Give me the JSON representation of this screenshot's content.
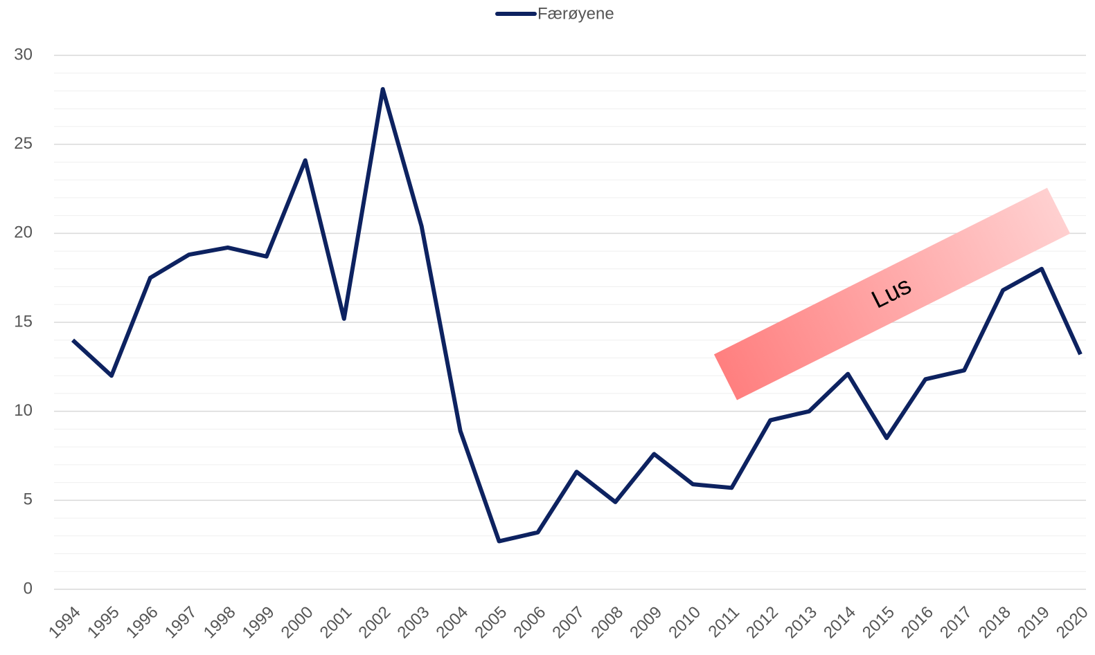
{
  "chart_data": {
    "type": "line",
    "categories": [
      "1994",
      "1995",
      "1996",
      "1997",
      "1998",
      "1999",
      "2000",
      "2001",
      "2002",
      "2003",
      "2004",
      "2005",
      "2006",
      "2007",
      "2008",
      "2009",
      "2010",
      "2011",
      "2012",
      "2013",
      "2014",
      "2015",
      "2016",
      "2017",
      "2018",
      "2019",
      "2020"
    ],
    "series": [
      {
        "name": "Færøyene",
        "color": "#0d2260",
        "values": [
          14.0,
          12.0,
          17.5,
          18.8,
          19.2,
          18.7,
          24.1,
          15.2,
          28.1,
          20.4,
          8.9,
          2.7,
          3.2,
          6.6,
          4.9,
          7.6,
          5.9,
          5.7,
          9.5,
          10.0,
          12.1,
          8.5,
          11.8,
          12.3,
          16.8,
          18.0,
          13.2
        ]
      }
    ],
    "ylim": [
      0,
      30
    ],
    "yticks": [
      0,
      5,
      10,
      15,
      20,
      25,
      30
    ],
    "grid": true,
    "legend": "top",
    "annotations": [
      "Lus"
    ]
  }
}
